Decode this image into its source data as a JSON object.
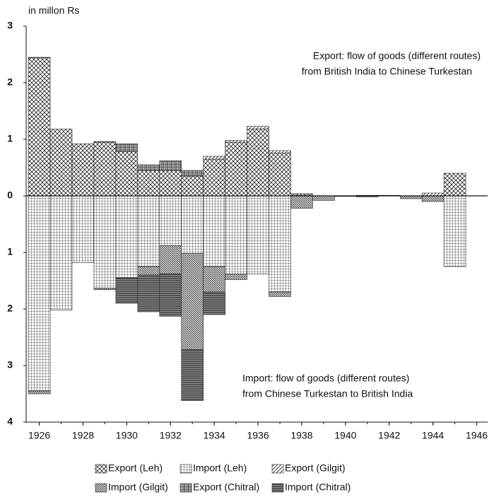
{
  "chart_data": {
    "type": "bar",
    "unit_label": "in millon Rs",
    "annotations": [
      "Export: flow of goods (different routes)",
      "from British India to Chinese Turkestan",
      "Import: flow of goods (different routes)",
      "from Chinese Turkestan to British India"
    ],
    "x": [
      1926,
      1927,
      1928,
      1929,
      1930,
      1931,
      1932,
      1933,
      1934,
      1935,
      1936,
      1937,
      1938,
      1939,
      1940,
      1941,
      1942,
      1943,
      1944,
      1945
    ],
    "xlim": [
      1925.4,
      1946.5
    ],
    "xticks": [
      1926,
      1928,
      1930,
      1932,
      1934,
      1936,
      1938,
      1940,
      1942,
      1944,
      1946
    ],
    "ylim": [
      -4,
      3
    ],
    "yticks": [
      {
        "value": -4,
        "label": "4"
      },
      {
        "value": -3,
        "label": "3"
      },
      {
        "value": -2,
        "label": "2"
      },
      {
        "value": -1,
        "label": "1"
      },
      0,
      1,
      2,
      3
    ],
    "stacked": true,
    "series": [
      {
        "name": "Export (Leh)",
        "color": "#222",
        "pattern": "crosshatch",
        "values": [
          2.44,
          1.18,
          0.92,
          0.95,
          0.78,
          0.45,
          0.45,
          0.35,
          0.65,
          0.95,
          1.18,
          0.76,
          0.02,
          0,
          0,
          0,
          0,
          0,
          0,
          0.4
        ]
      },
      {
        "name": "Import (Leh)",
        "color": "#222",
        "pattern": "grid",
        "values": [
          -3.45,
          -2.02,
          -1.18,
          -1.63,
          -1.45,
          -1.25,
          -0.88,
          -1.02,
          -1.25,
          -1.38,
          -1.38,
          -1.7,
          0,
          0,
          0,
          0,
          0,
          0,
          0,
          -1.25
        ]
      },
      {
        "name": "Export (Gilgit)",
        "color": "#222",
        "pattern": "diagonal",
        "values": [
          0.01,
          0,
          0,
          0.01,
          0,
          0,
          0,
          0,
          0.05,
          0.03,
          0.05,
          0.04,
          0.02,
          0,
          0,
          0.01,
          0.01,
          0,
          0.05,
          0
        ]
      },
      {
        "name": "Import (Gilgit)",
        "color": "#222",
        "pattern": "backdiagonal",
        "values": [
          -0.05,
          0,
          0,
          -0.03,
          0,
          -0.15,
          -0.5,
          -1.7,
          -0.45,
          -0.1,
          0,
          -0.08,
          -0.22,
          -0.08,
          -0.01,
          -0.02,
          0,
          -0.05,
          -0.1,
          0
        ]
      },
      {
        "name": "Export (Chitral)",
        "color": "#222",
        "pattern": "coarsegrid",
        "values": [
          0,
          0,
          0,
          0,
          0.14,
          0.1,
          0.17,
          0.1,
          0,
          0,
          0,
          0,
          0,
          0,
          0,
          0,
          0,
          0,
          0,
          0
        ]
      },
      {
        "name": "Import (Chitral)",
        "color": "#222",
        "pattern": "hlines",
        "values": [
          0,
          0,
          0,
          0,
          -0.45,
          -0.65,
          -0.75,
          -0.9,
          -0.4,
          0,
          0,
          0,
          0,
          0,
          0,
          0,
          0,
          0,
          0,
          0
        ]
      }
    ],
    "legend": "bottom"
  }
}
